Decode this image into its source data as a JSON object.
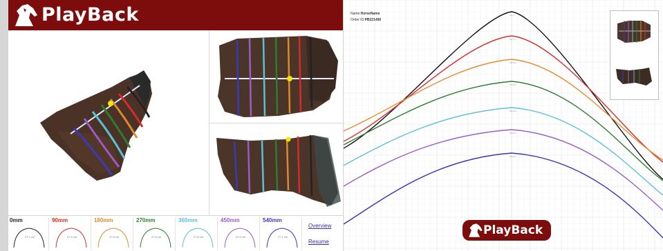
{
  "app": {
    "logo_text": "PlayBack",
    "footer_logo_text": "PlayBack"
  },
  "profiles": [
    {
      "label": "0mm",
      "color": "#222222",
      "measure": "27.1 cm"
    },
    {
      "label": "90mm",
      "color": "#d62b2b",
      "measure": "27.9 cm"
    },
    {
      "label": "180mm",
      "color": "#e08a30",
      "measure": "27.5 cm"
    },
    {
      "label": "270mm",
      "color": "#2e7d2e",
      "measure": "27.6 cm"
    },
    {
      "label": "360mm",
      "color": "#5bc0d8",
      "measure": "27.8 cm"
    },
    {
      "label": "450mm",
      "color": "#9a5cc8",
      "measure": "27.9 cm"
    },
    {
      "label": "540mm",
      "color": "#3a3ab8",
      "measure": "27.1 cm"
    }
  ],
  "links": {
    "overview": "Overview",
    "resume": "Resume"
  },
  "report": {
    "name_label": "Name:",
    "name_value": "HorseName",
    "order_label": "Order ID:",
    "order_value": "PB221456"
  },
  "curves": [
    {
      "color": "#111111",
      "label": "0mm"
    },
    {
      "color": "#d62b2b",
      "label": "90mm"
    },
    {
      "color": "#e6892f",
      "label": "180mm"
    },
    {
      "color": "#2e7d2e",
      "label": "270mm"
    },
    {
      "color": "#5bc0d8",
      "label": "360mm"
    },
    {
      "color": "#9a5cc8",
      "label": "450mm"
    },
    {
      "color": "#3535b5",
      "label": "540mm"
    }
  ]
}
